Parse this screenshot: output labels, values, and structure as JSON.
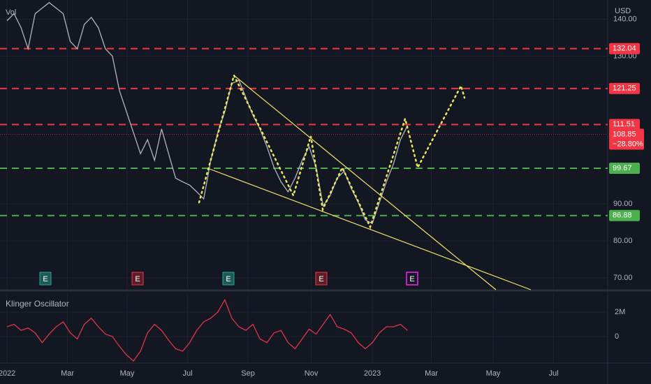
{
  "chart_data": {
    "type": "line",
    "volume_label": "Vol",
    "currency": "USD",
    "color": "#b2b5be",
    "grid": true,
    "categories": [
      null,
      null,
      null,
      null,
      null,
      null,
      null,
      null,
      null,
      null,
      null,
      null,
      null,
      null,
      null,
      null,
      null,
      null,
      null,
      null,
      null,
      null,
      null,
      null,
      null,
      null,
      null,
      null,
      null,
      null,
      null,
      null,
      null,
      null,
      null,
      null,
      null,
      null,
      null,
      null,
      null,
      null,
      null,
      null,
      null,
      null,
      null,
      null,
      null,
      null,
      null,
      null,
      null,
      null,
      null,
      null,
      null,
      null
    ],
    "values": [
      139.6,
      141.5,
      137.7,
      132,
      141.5,
      143,
      144.5,
      143,
      141.5,
      134,
      132,
      138.6,
      140.5,
      137.7,
      132,
      130,
      120.7,
      115,
      109.3,
      103.6,
      107.4,
      101.8,
      110.3,
      103.6,
      97,
      96,
      95.1,
      93.3,
      91.4,
      101.8,
      109.3,
      115,
      122.6,
      123.5,
      118.8,
      114,
      110.3,
      105.5,
      99.9,
      96,
      93.3,
      97,
      101.8,
      105.5,
      99.9,
      89.5,
      92.3,
      97,
      98.9,
      94.2,
      90.4,
      85.7,
      84.7,
      90.4,
      96,
      100.8,
      107.4,
      111.2
    ],
    "xlim": [
      -1,
      85.5
    ],
    "xticks": [
      {
        "value": 0,
        "label": "2022"
      },
      {
        "value": 8.6,
        "label": "Mar"
      },
      {
        "value": 17.1,
        "label": "May"
      },
      {
        "value": 25.7,
        "label": "Jul"
      },
      {
        "value": 34.3,
        "label": "Sep"
      },
      {
        "value": 43.3,
        "label": "Nov"
      },
      {
        "value": 52,
        "label": "2023"
      },
      {
        "value": 60.4,
        "label": "Mar"
      },
      {
        "value": 69.2,
        "label": "May"
      },
      {
        "value": 77.8,
        "label": "Jul"
      }
    ],
    "ylim": [
      66.8,
      145.2
    ],
    "yticks": [
      {
        "value": 70,
        "label": "70.00"
      },
      {
        "value": 80,
        "label": "80.00"
      },
      {
        "value": 90,
        "label": "90.00"
      },
      {
        "value": 130,
        "label": "130.00"
      },
      {
        "value": 140,
        "label": "140.00"
      }
    ],
    "levels": [
      {
        "value": 132.04,
        "color": "#f23645"
      },
      {
        "value": 121.25,
        "color": "#f23645"
      },
      {
        "value": 111.51,
        "color": "#f23645"
      },
      {
        "value": 99.67,
        "color": "#4caf50"
      },
      {
        "value": 86.88,
        "color": "#4caf50"
      }
    ],
    "last_price": 108.85,
    "last_change": {
      "value": -28.8,
      "label": "−28.80%"
    },
    "earnings": [
      "E",
      "E",
      "E",
      "E",
      "E"
    ],
    "indicator": {
      "title": "Klinger Oscillator",
      "color": "#e0344a",
      "values": [
        800000,
        1000000,
        500000,
        700000,
        300000,
        -500000,
        200000,
        800000,
        1200000,
        300000,
        -200000,
        1000000,
        1500000,
        800000,
        200000,
        0,
        -800000,
        -1500000,
        -2000000,
        -1200000,
        300000,
        1000000,
        500000,
        -300000,
        -1000000,
        -1200000,
        -500000,
        500000,
        1200000,
        1500000,
        2000000,
        3000000,
        1500000,
        800000,
        500000,
        1000000,
        -200000,
        -500000,
        300000,
        500000,
        -500000,
        -1000000,
        -200000,
        600000,
        200000,
        1000000,
        1800000,
        800000,
        600000,
        300000,
        -500000,
        -1000000,
        -500000,
        300000,
        800000,
        800000,
        1000000,
        500000
      ],
      "ylim": [
        -2170000,
        3540000
      ],
      "yticks": [
        {
          "value": 0,
          "label": "0"
        },
        {
          "value": 2000000,
          "label": "2M"
        }
      ]
    }
  }
}
